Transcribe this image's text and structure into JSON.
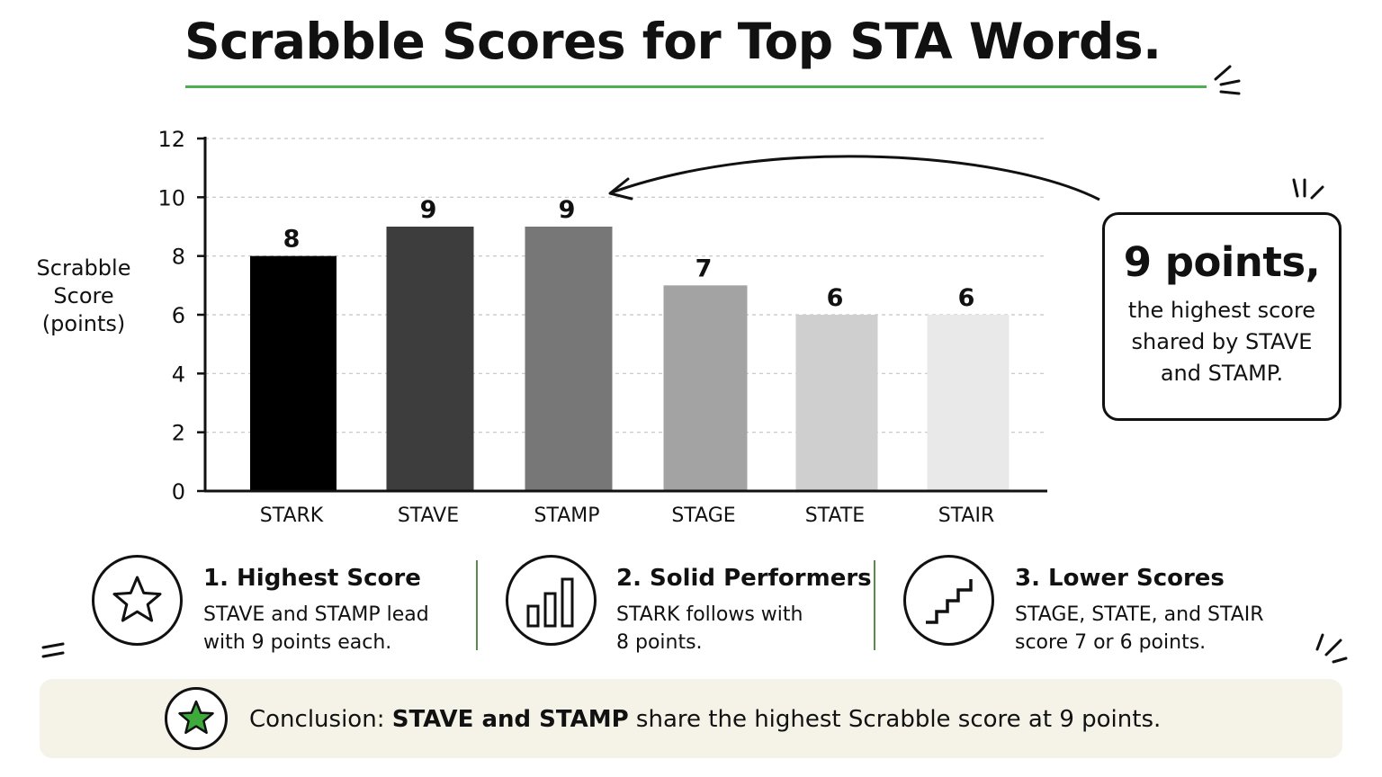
{
  "title": "Scrabble Scores for Top STA Words.",
  "colors": {
    "accent_green": "#4caf50",
    "divider_green": "#5c8a4a",
    "conclusion_bg": "#f5f2e8"
  },
  "chart_data": {
    "type": "bar",
    "title": "Scrabble Scores for Top STA Words.",
    "categories": [
      "STARK",
      "STAVE",
      "STAMP",
      "STAGE",
      "STATE",
      "STAIR"
    ],
    "values": [
      8,
      9,
      9,
      7,
      6,
      6
    ],
    "bar_colors": [
      "#000000",
      "#3d3d3d",
      "#777777",
      "#a3a3a3",
      "#cfcfcf",
      "#e9e9e9"
    ],
    "data_labels": [
      "8",
      "9",
      "9",
      "7",
      "6",
      "6"
    ],
    "xlabel": "",
    "ylabel": "Scrabble Score (points)",
    "ylabel_lines": [
      "Scrabble",
      "Score",
      "(points)"
    ],
    "ylim": [
      0,
      12
    ],
    "yticks": [
      0,
      2,
      4,
      6,
      8,
      10,
      12
    ],
    "grid": true,
    "annotation": {
      "points_to": "STAMP"
    }
  },
  "callout": {
    "headline": "9 points,",
    "text_lines": [
      "the highest score",
      "shared by STAVE",
      "and STAMP."
    ]
  },
  "takeaways": [
    {
      "heading": "1. Highest Score",
      "lines": [
        "STAVE and STAMP lead",
        "with 9 points each."
      ],
      "icon": "star-icon"
    },
    {
      "heading": "2. Solid Performers",
      "lines": [
        "STARK follows with",
        "8 points."
      ],
      "icon": "bar-chart-icon"
    },
    {
      "heading": "3. Lower Scores",
      "lines": [
        "STAGE, STATE, and STAIR",
        "score 7 or 6 points."
      ],
      "icon": "stairs-icon"
    }
  ],
  "conclusion": {
    "prefix": "Conclusion: ",
    "bold": "STAVE and STAMP",
    "suffix": " share the highest Scrabble score at 9 points.",
    "icon": "green-star-icon"
  }
}
